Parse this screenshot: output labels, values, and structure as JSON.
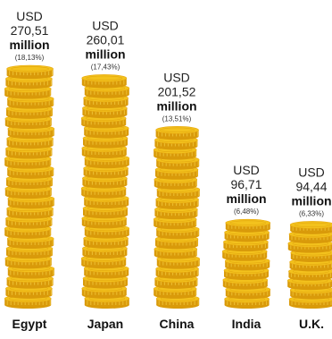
{
  "chart_data": {
    "type": "bar",
    "categories": [
      "Egypt",
      "Japan",
      "China",
      "India",
      "U.K."
    ],
    "values": [
      270.51,
      260.01,
      201.52,
      96.71,
      94.44
    ],
    "series": [
      {
        "values": [
          270.51,
          260.01,
          201.52,
          96.71,
          94.44
        ]
      }
    ],
    "bar_labels": [
      {
        "currency": "USD",
        "value": "270,51",
        "unit": "million",
        "share": "(18,13%)"
      },
      {
        "currency": "USD",
        "value": "260,01",
        "unit": "million",
        "share": "(17,43%)"
      },
      {
        "currency": "USD",
        "value": "201,52",
        "unit": "million",
        "share": "(13,51%)"
      },
      {
        "currency": "USD",
        "value": "96,71",
        "unit": "million",
        "share": "(6,48%)"
      },
      {
        "currency": "USD",
        "value": "94,44",
        "unit": "million",
        "share": "(6,33%)"
      }
    ],
    "shares_percent": [
      18.13,
      17.43,
      13.51,
      6.48,
      6.33
    ],
    "mark_style": "stacked-coins",
    "coin_color": "#f3c21d",
    "coin_edge_color": "#d99a0a",
    "grid": false,
    "legend": "none",
    "title": "",
    "xlabel": "",
    "ylabel": ""
  }
}
